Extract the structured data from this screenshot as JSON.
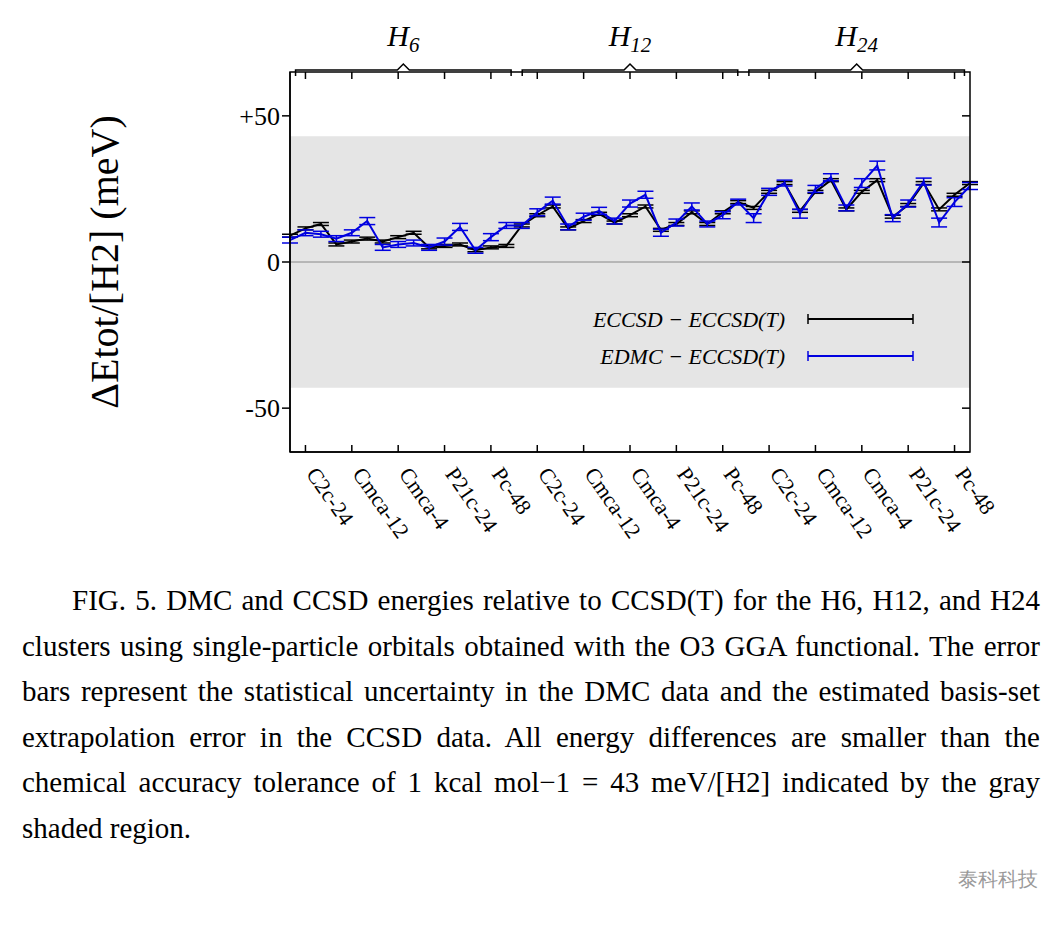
{
  "chart_data": {
    "type": "line",
    "y_label": "ΔEtot/[H2] (meV)",
    "annotations": [
      "H6",
      "H12",
      "H24"
    ],
    "caption": "FIG. 5. DMC and CCSD energies relative to CCSD(T) for the H6, H12, and H24 clusters using single-particle orbitals obtained with the O3 GGA functional. The error bars represent the statistical uncertainty in the DMC data and the estimated basis-set extrapolation error in the CCSD data. All energy differences are smaller than the chemical accuracy tolerance of 1 kcal mol−1 = 43 meV/[H2] indicated by the gray shaded region.",
    "watermark": "泰科科技",
    "categories": [
      null,
      "C2c-24",
      null,
      null,
      "Cmca-12",
      null,
      null,
      "Cmca-4",
      null,
      null,
      "P21c-24",
      null,
      null,
      "Pc-48",
      null,
      null,
      "C2c-24",
      null,
      null,
      "Cmca-12",
      null,
      null,
      "Cmca-4",
      null,
      null,
      "P21c-24",
      null,
      null,
      "Pc-48",
      null,
      null,
      "C2c-24",
      null,
      null,
      "Cmca-12",
      null,
      null,
      "Cmca-4",
      null,
      null,
      "P21c-24",
      null,
      null,
      "Pc-48",
      null
    ],
    "series": [
      {
        "name": "ECCSD − ECCSD(T)",
        "color": "#000000",
        "values": [
          9,
          11.5,
          13,
          6,
          7,
          8,
          7,
          8.5,
          10,
          5,
          5.5,
          6,
          4,
          5,
          5.5,
          12.5,
          16,
          19,
          11.5,
          14,
          16.5,
          13.5,
          16,
          19,
          11,
          13,
          17,
          13,
          17,
          20.5,
          18.5,
          24,
          27,
          17.5,
          24,
          28,
          18,
          24,
          28,
          15.5,
          19.5,
          27,
          18,
          23,
          27
        ],
        "errors": [
          0.5,
          0.5,
          0.5,
          0.5,
          0.5,
          0.5,
          0.5,
          0.5,
          0.5,
          0.5,
          0.5,
          0.5,
          0.5,
          0.5,
          0.5,
          0.5,
          0.5,
          0.5,
          0.5,
          0.5,
          0.5,
          0.5,
          0.5,
          0.5,
          0.5,
          0.5,
          0.5,
          0.5,
          0.5,
          0.5,
          0.5,
          0.5,
          0.5,
          0.5,
          0.5,
          0.5,
          0.5,
          0.5,
          0.5,
          0.5,
          0.5,
          0.5,
          0.5,
          0.5,
          0.5
        ]
      },
      {
        "name": "EDMC − ECCSD(T)",
        "color": "#0000e0",
        "values": [
          7.5,
          10,
          9.5,
          8,
          10,
          14,
          5,
          6,
          6.5,
          5,
          7,
          12,
          4,
          8.5,
          12.5,
          12.5,
          17,
          21,
          12,
          15.5,
          17.5,
          14,
          20,
          23,
          10,
          13.5,
          19,
          13,
          16,
          20.5,
          15,
          24,
          27,
          16.5,
          25,
          29,
          18.5,
          27,
          33,
          15,
          20,
          27.5,
          13.5,
          20.5,
          26
        ],
        "errors": [
          1,
          1,
          1,
          1,
          1,
          1.2,
          1,
          1,
          1,
          1,
          1.2,
          1.2,
          1,
          1.2,
          1,
          1,
          1.2,
          1.2,
          1,
          1.2,
          1.2,
          1,
          1.2,
          1.2,
          1.2,
          1.2,
          1.2,
          1,
          1.2,
          1,
          1.5,
          1.2,
          1,
          1.5,
          1.2,
          1.2,
          1,
          1.5,
          1.5,
          1.2,
          1.2,
          1.2,
          1.5,
          1.5,
          1.2
        ]
      }
    ],
    "ylim": [
      -65,
      65
    ],
    "yticks": [
      {
        "value": -50,
        "label": "-50"
      },
      0,
      {
        "value": 50,
        "label": "+50"
      }
    ],
    "band": [
      -43,
      43
    ],
    "reference_lines": [
      0
    ],
    "legend": "lower right",
    "grid": false
  }
}
